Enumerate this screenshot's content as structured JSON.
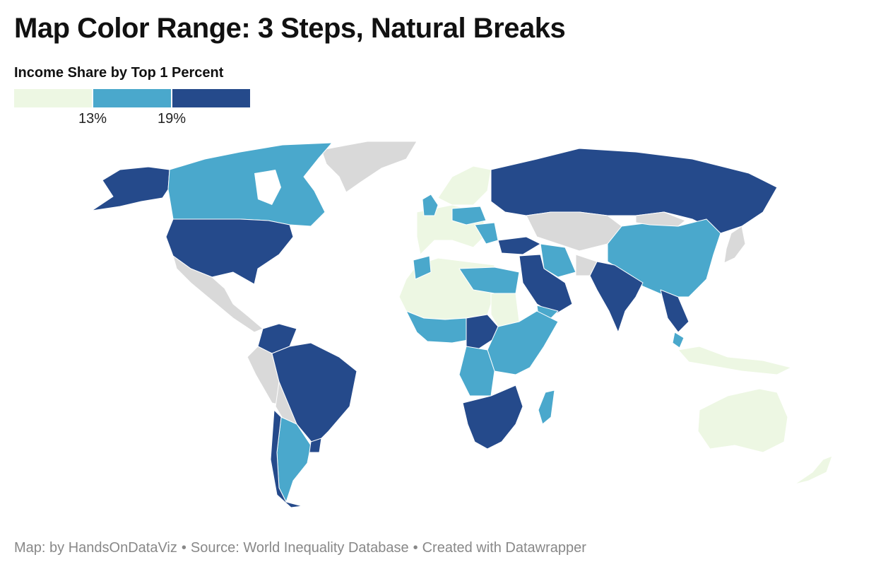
{
  "title": "Map Color Range: 3 Steps, Natural Breaks",
  "legend": {
    "title": "Income Share by Top 1 Percent",
    "colors": [
      "#edf7e3",
      "#4aa8cc",
      "#254a8b"
    ],
    "breaks": [
      "13%",
      "19%"
    ],
    "no_data_color": "#d9d9d9"
  },
  "footer": {
    "map_by": "Map: by HandsOnDataViz",
    "source": "Source: World Inequality Database",
    "created": "Created with Datawrapper",
    "separator": "•"
  }
}
